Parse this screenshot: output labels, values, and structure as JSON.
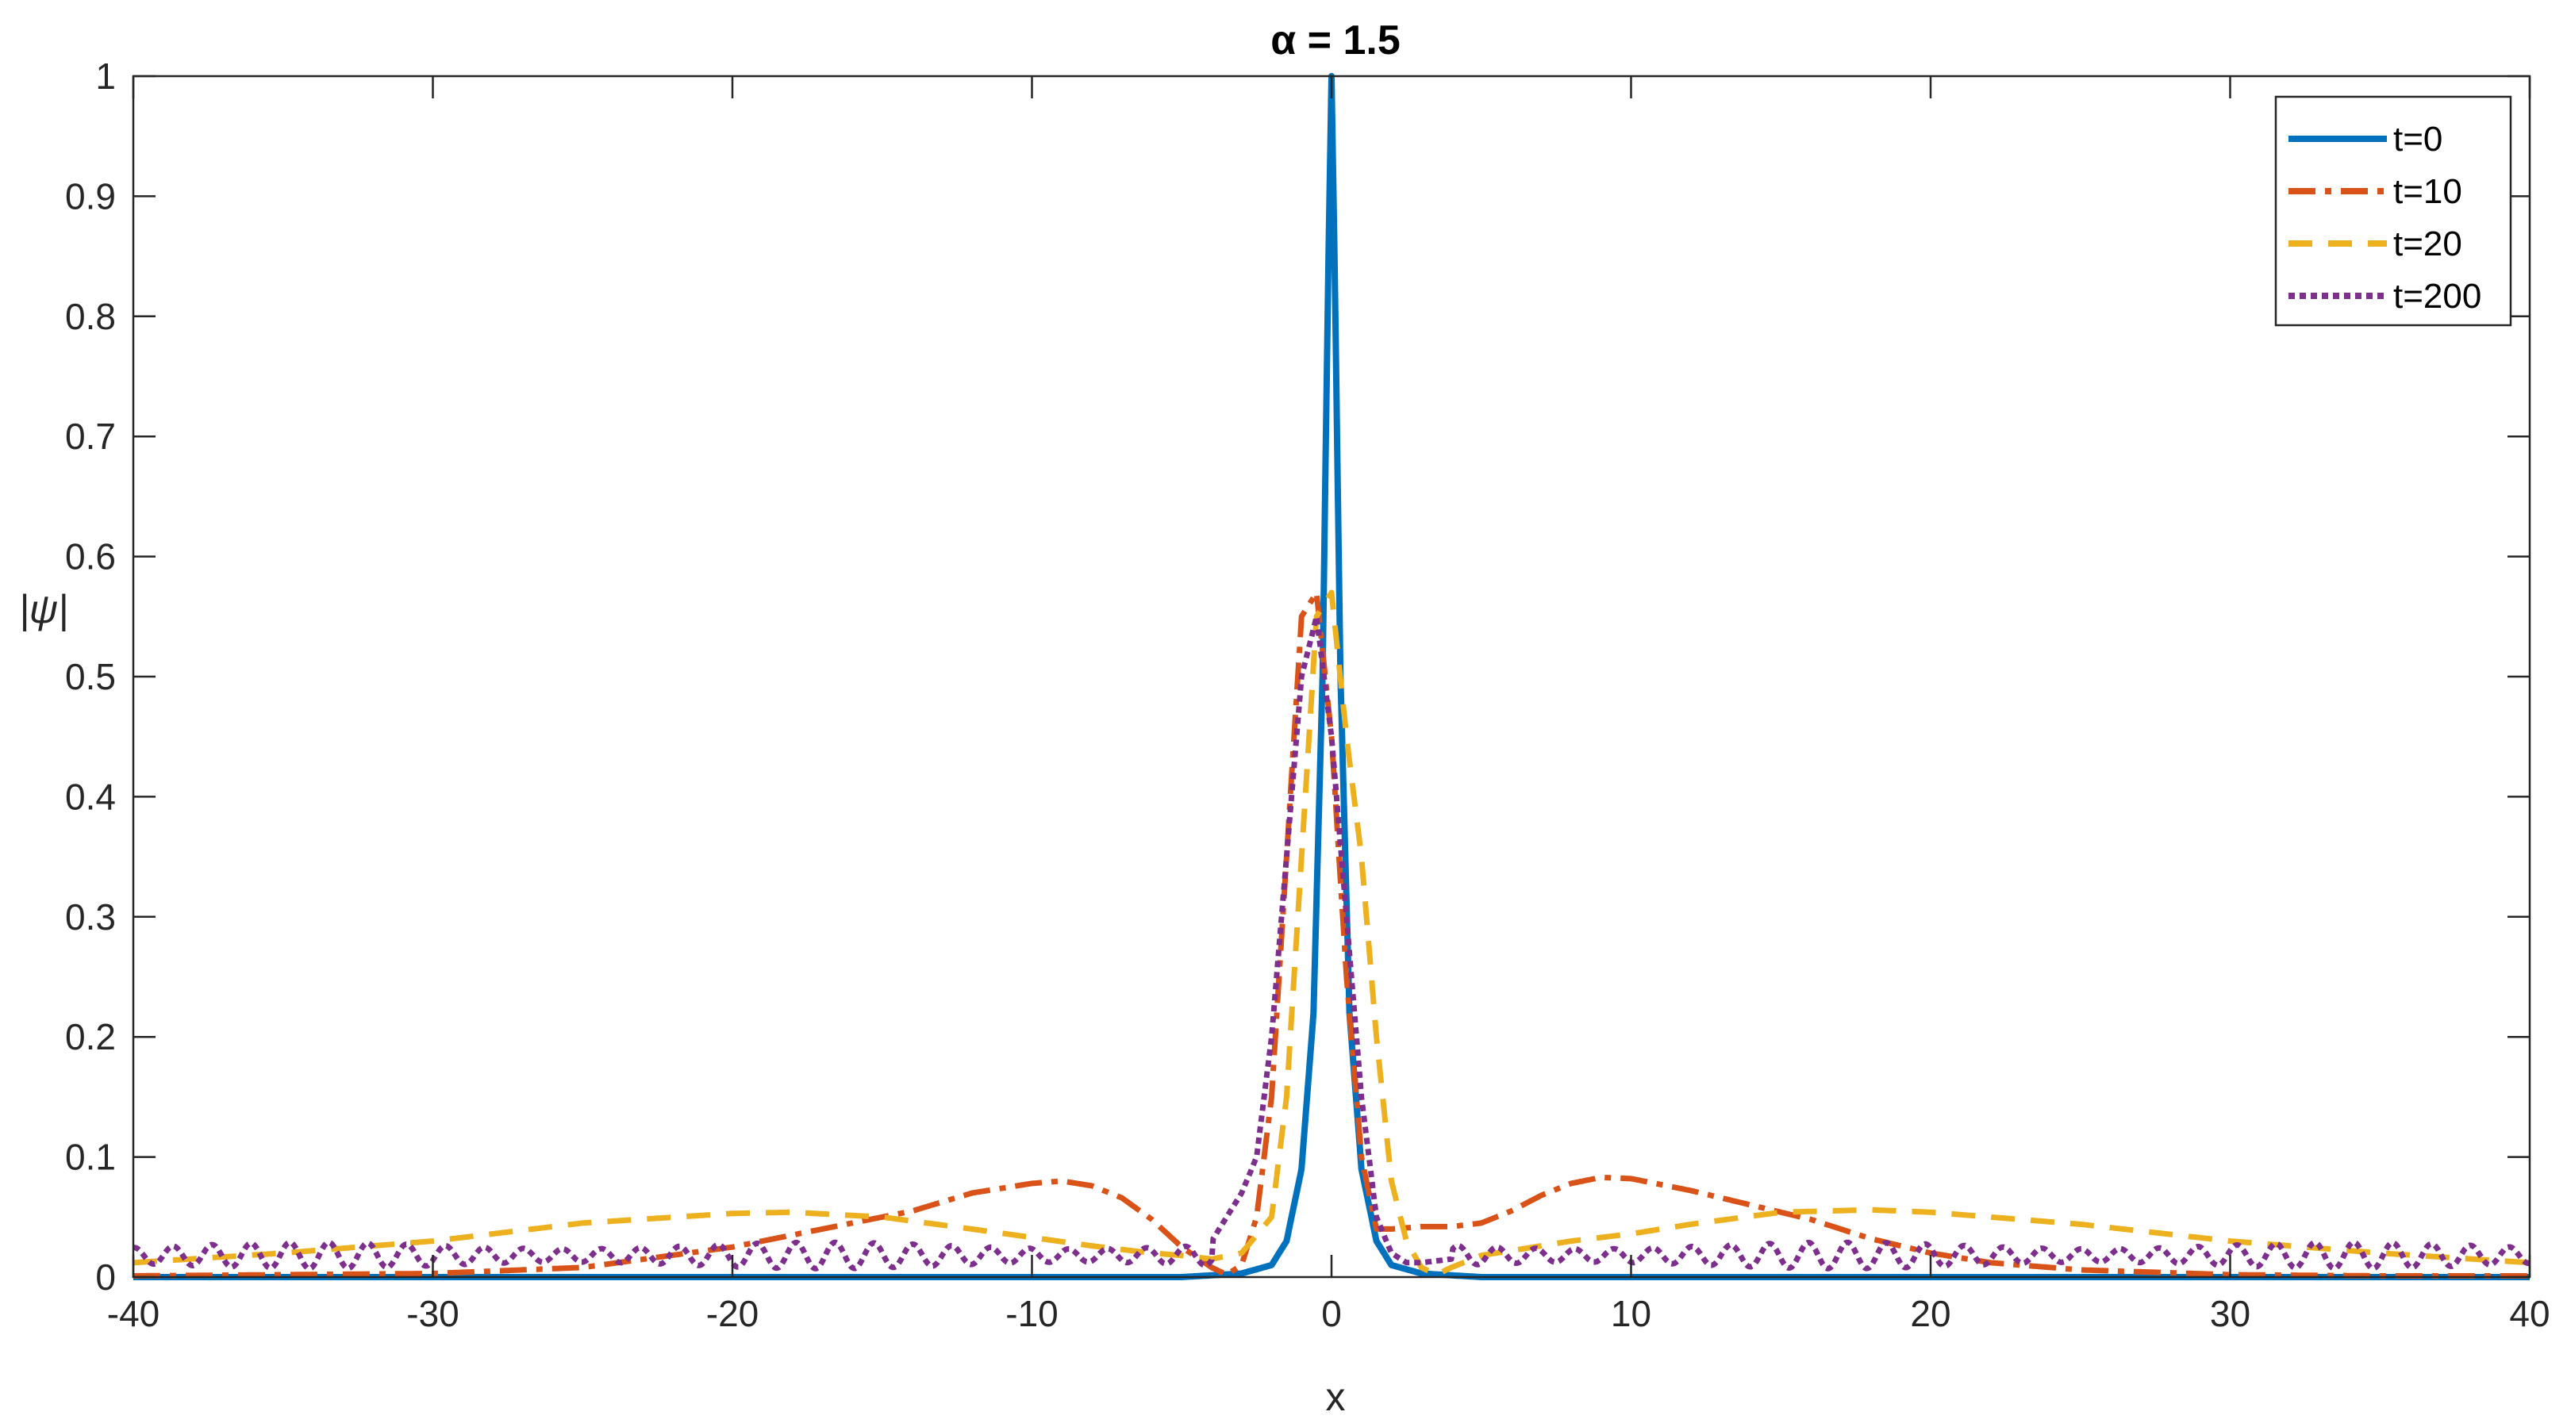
{
  "chart_data": {
    "type": "line",
    "title": "α = 1.5",
    "xlabel": "x",
    "ylabel": "|ψ|",
    "xlim": [
      -40,
      40
    ],
    "ylim": [
      0,
      1
    ],
    "xticks": [
      "-40",
      "-30",
      "-20",
      "-10",
      "0",
      "10",
      "20",
      "30",
      "40"
    ],
    "yticks": [
      "0",
      "0.1",
      "0.2",
      "0.3",
      "0.4",
      "0.5",
      "0.6",
      "0.7",
      "0.8",
      "0.9",
      "1"
    ],
    "grid": false,
    "legend_position": "top-right",
    "series": [
      {
        "name": "t=0",
        "color": "#0072BD",
        "dash": "solid",
        "x": [
          -40,
          -5,
          -3,
          -2,
          -1.5,
          -1,
          -0.6,
          -0.3,
          -0.1,
          0,
          0.1,
          0.3,
          0.6,
          1,
          1.5,
          2,
          3,
          5,
          40
        ],
        "y": [
          0,
          0,
          0.003,
          0.01,
          0.03,
          0.09,
          0.22,
          0.5,
          0.85,
          1.0,
          0.85,
          0.5,
          0.22,
          0.09,
          0.03,
          0.01,
          0.003,
          0,
          0
        ]
      },
      {
        "name": "t=10",
        "color": "#D95319",
        "dash": "dashdot",
        "x": [
          -40,
          -30,
          -25,
          -20,
          -17,
          -14,
          -12,
          -10,
          -9,
          -8,
          -7,
          -6,
          -5,
          -4,
          -3.5,
          -3,
          -2.5,
          -2,
          -1.5,
          -1,
          -0.5,
          0,
          0.5,
          1,
          1.5,
          2,
          3,
          4,
          5,
          6,
          7,
          8,
          9,
          10,
          12,
          14,
          16,
          18,
          20,
          22,
          25,
          30,
          35,
          40
        ],
        "y": [
          0.001,
          0.003,
          0.008,
          0.025,
          0.04,
          0.055,
          0.07,
          0.078,
          0.08,
          0.076,
          0.066,
          0.048,
          0.025,
          0.008,
          0.002,
          0.01,
          0.05,
          0.15,
          0.35,
          0.55,
          0.57,
          0.45,
          0.25,
          0.1,
          0.04,
          0.04,
          0.042,
          0.042,
          0.045,
          0.055,
          0.068,
          0.078,
          0.083,
          0.082,
          0.072,
          0.06,
          0.048,
          0.032,
          0.02,
          0.012,
          0.006,
          0.002,
          0.001,
          0.001
        ]
      },
      {
        "name": "t=20",
        "color": "#EDB120",
        "dash": "dashed",
        "x": [
          -40,
          -35,
          -30,
          -25,
          -20,
          -18,
          -15,
          -12,
          -10,
          -8,
          -6,
          -5,
          -4,
          -3,
          -2,
          -1.5,
          -1,
          -0.5,
          0,
          0.5,
          1,
          1.5,
          2,
          2.5,
          3,
          3.5,
          4,
          5,
          6,
          8,
          10,
          12,
          15,
          18,
          20,
          25,
          30,
          35,
          40
        ],
        "y": [
          0.012,
          0.02,
          0.03,
          0.045,
          0.053,
          0.054,
          0.05,
          0.04,
          0.033,
          0.026,
          0.02,
          0.018,
          0.015,
          0.02,
          0.05,
          0.15,
          0.35,
          0.55,
          0.57,
          0.45,
          0.35,
          0.2,
          0.08,
          0.03,
          0.008,
          0.002,
          0.008,
          0.018,
          0.022,
          0.03,
          0.036,
          0.044,
          0.054,
          0.056,
          0.054,
          0.044,
          0.03,
          0.02,
          0.012
        ]
      },
      {
        "name": "t=200",
        "color": "#7E2F8E",
        "dash": "dotted",
        "osc": {
          "amplitude": 0.011,
          "base": 0.018,
          "period": 1.3
        },
        "x": [
          -40,
          -30,
          -20,
          -10,
          -6,
          -5,
          -4,
          -3,
          -2.5,
          -2,
          -1.5,
          -1,
          -0.5,
          0,
          0.5,
          1,
          1.5,
          2,
          2.5,
          3,
          4,
          5,
          6,
          10,
          20,
          30,
          40
        ],
        "y": [
          0.018,
          0.018,
          0.018,
          0.018,
          0.018,
          0.022,
          0.03,
          0.07,
          0.1,
          0.2,
          0.35,
          0.5,
          0.55,
          0.45,
          0.3,
          0.15,
          0.05,
          0.02,
          0.012,
          0.012,
          0.015,
          0.018,
          0.018,
          0.018,
          0.018,
          0.018,
          0.018
        ]
      }
    ]
  }
}
